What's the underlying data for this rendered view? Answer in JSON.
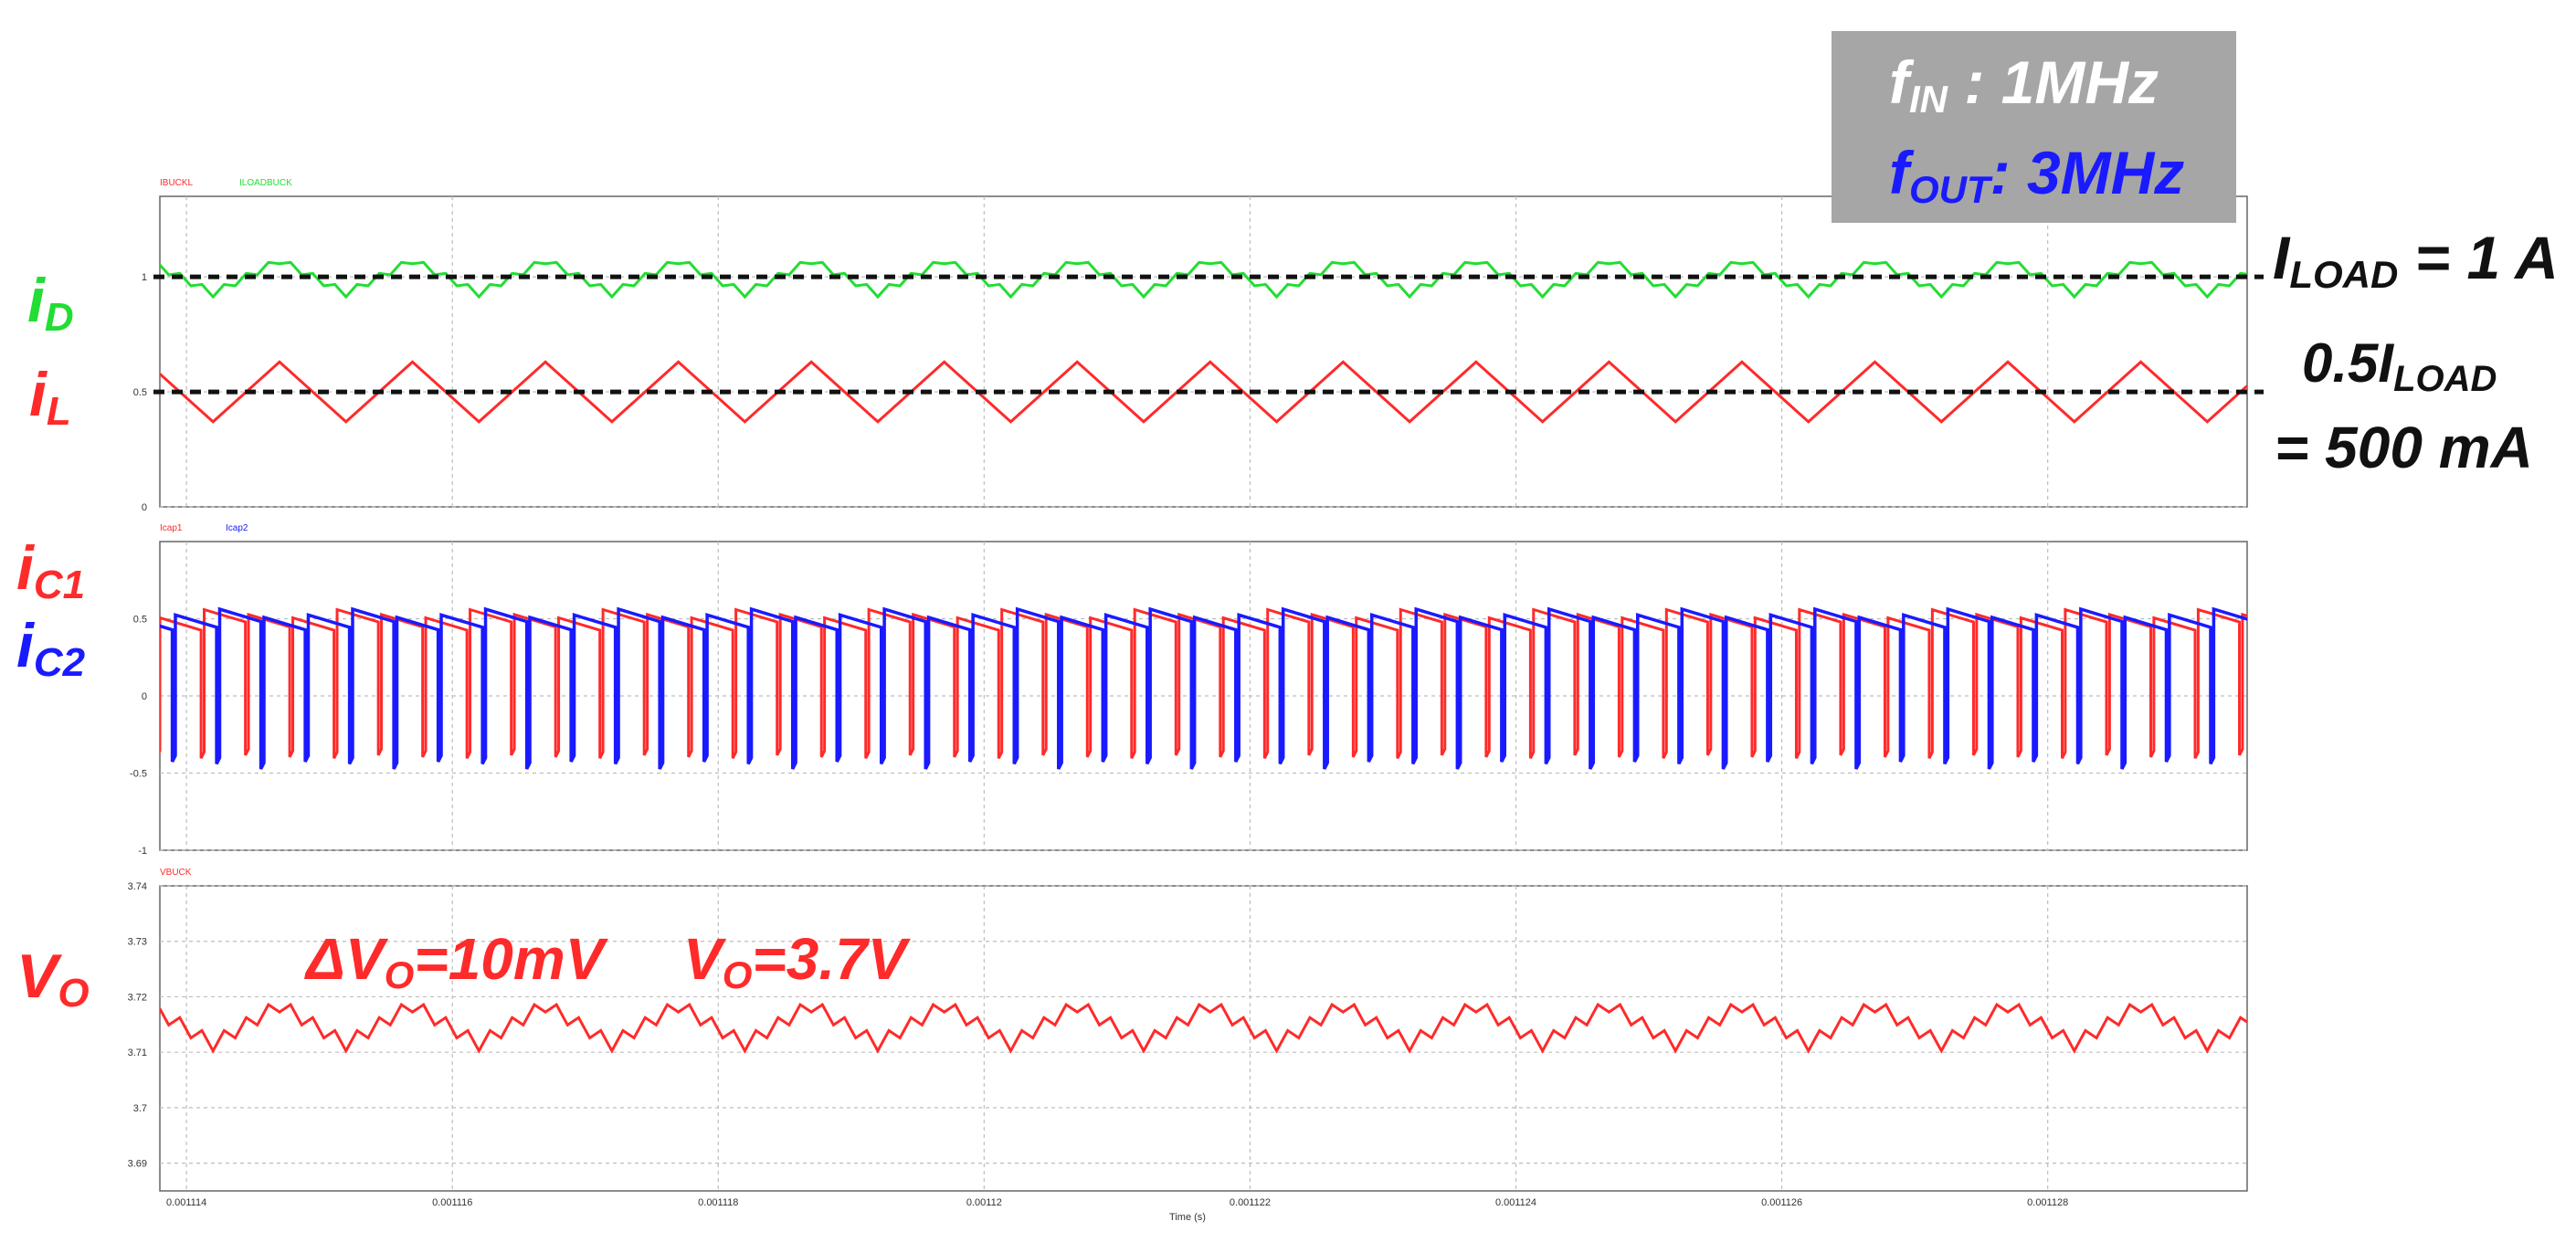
{
  "chart_data": {
    "type": "line",
    "xlabel": "Time (s)",
    "x_ticks": [
      "0.001114",
      "0.001116",
      "0.001118",
      "0.00112",
      "0.001122",
      "0.001124",
      "0.001126",
      "0.001128"
    ],
    "x_tick_values": [
      0.001114,
      0.001116,
      0.001118,
      0.00112,
      0.001122,
      0.001124,
      0.001126,
      0.001128
    ],
    "xlim": [
      0.0011138,
      0.0011295
    ],
    "panels": [
      {
        "id": "top",
        "ylim": [
          0,
          1.35
        ],
        "y_ticks": [
          0,
          0.5,
          1
        ],
        "y_tick_labels": [
          "0",
          "0.5",
          "1"
        ],
        "legend": [
          {
            "name": "IBUCKL",
            "color": "#ff2a2a"
          },
          {
            "name": "ILOADBUCK",
            "color": "#22dd33"
          }
        ],
        "series": [
          {
            "name": "IBUCKL",
            "color": "#ff2a2a",
            "shape": "triangle",
            "period_s": 1e-06,
            "min": 0.37,
            "max": 0.63
          },
          {
            "name": "ILOADBUCK",
            "color": "#22dd33",
            "shape": "zigzag",
            "period_s": 1e-06,
            "base": 1.0,
            "amplitude": 0.09
          }
        ],
        "reference_lines": [
          {
            "y": 1.0,
            "label_html_key": "iload"
          },
          {
            "y": 0.5,
            "label_html_key": "half_iload"
          }
        ]
      },
      {
        "id": "middle",
        "ylim": [
          -1,
          1
        ],
        "y_ticks": [
          -1,
          -0.5,
          0,
          0.5
        ],
        "y_tick_labels": [
          "-1",
          "-0.5",
          "0",
          "0.5"
        ],
        "legend": [
          {
            "name": "Icap1",
            "color": "#ff2a2a"
          },
          {
            "name": "Icap2",
            "color": "#1a1aff"
          }
        ],
        "series": [
          {
            "name": "Icap1",
            "color": "#ff2a2a",
            "shape": "switching",
            "period_s": 3.333e-07,
            "min": -0.63,
            "max": 0.57
          },
          {
            "name": "Icap2",
            "color": "#1a1aff",
            "shape": "switching",
            "period_s": 3.333e-07,
            "min": -0.63,
            "max": 0.57
          }
        ]
      },
      {
        "id": "bottom",
        "ylim": [
          3.685,
          3.74
        ],
        "y_ticks": [
          3.69,
          3.7,
          3.71,
          3.72,
          3.73,
          3.74
        ],
        "y_tick_labels": [
          "3.69",
          "3.7",
          "3.71",
          "3.72",
          "3.73",
          "3.74"
        ],
        "legend": [
          {
            "name": "VBUCK",
            "color": "#ff2a2a"
          }
        ],
        "series": [
          {
            "name": "VBUCK",
            "color": "#ff2a2a",
            "shape": "zigzag",
            "period_s": 1e-06,
            "base": 3.715,
            "amplitude": 0.005
          }
        ]
      }
    ]
  },
  "labels": {
    "iD_main": "i",
    "iD_sub": "D",
    "iL_main": "i",
    "iL_sub": "L",
    "iC1_main": "i",
    "iC1_sub": "C1",
    "iC2_main": "i",
    "iC2_sub": "C2",
    "vO_main": "V",
    "vO_sub": "O"
  },
  "freq_box": {
    "fin_main": "f",
    "fin_sub": "IN",
    "fin_value": " : 1MHz",
    "fout_main": "f",
    "fout_sub": "OUT",
    "fout_value": ": 3MHz"
  },
  "annotations": {
    "iload_main": "I",
    "iload_sub": "LOAD",
    "iload_value": " = 1 A",
    "half_prefix": "0.5I",
    "half_sub": "LOAD",
    "half_value": "= 500 mA",
    "dvo_prefix": "ΔV",
    "dvo_sub": "O",
    "dvo_value": "=10mV",
    "vo_prefix": "V",
    "vo_sub": "O",
    "vo_value": "=3.7V"
  },
  "colors": {
    "green": "#22dd33",
    "red": "#ff2a2a",
    "blue": "#1a1aff",
    "box_bg": "#a6a6a6",
    "grid": "#bdbdbd"
  }
}
